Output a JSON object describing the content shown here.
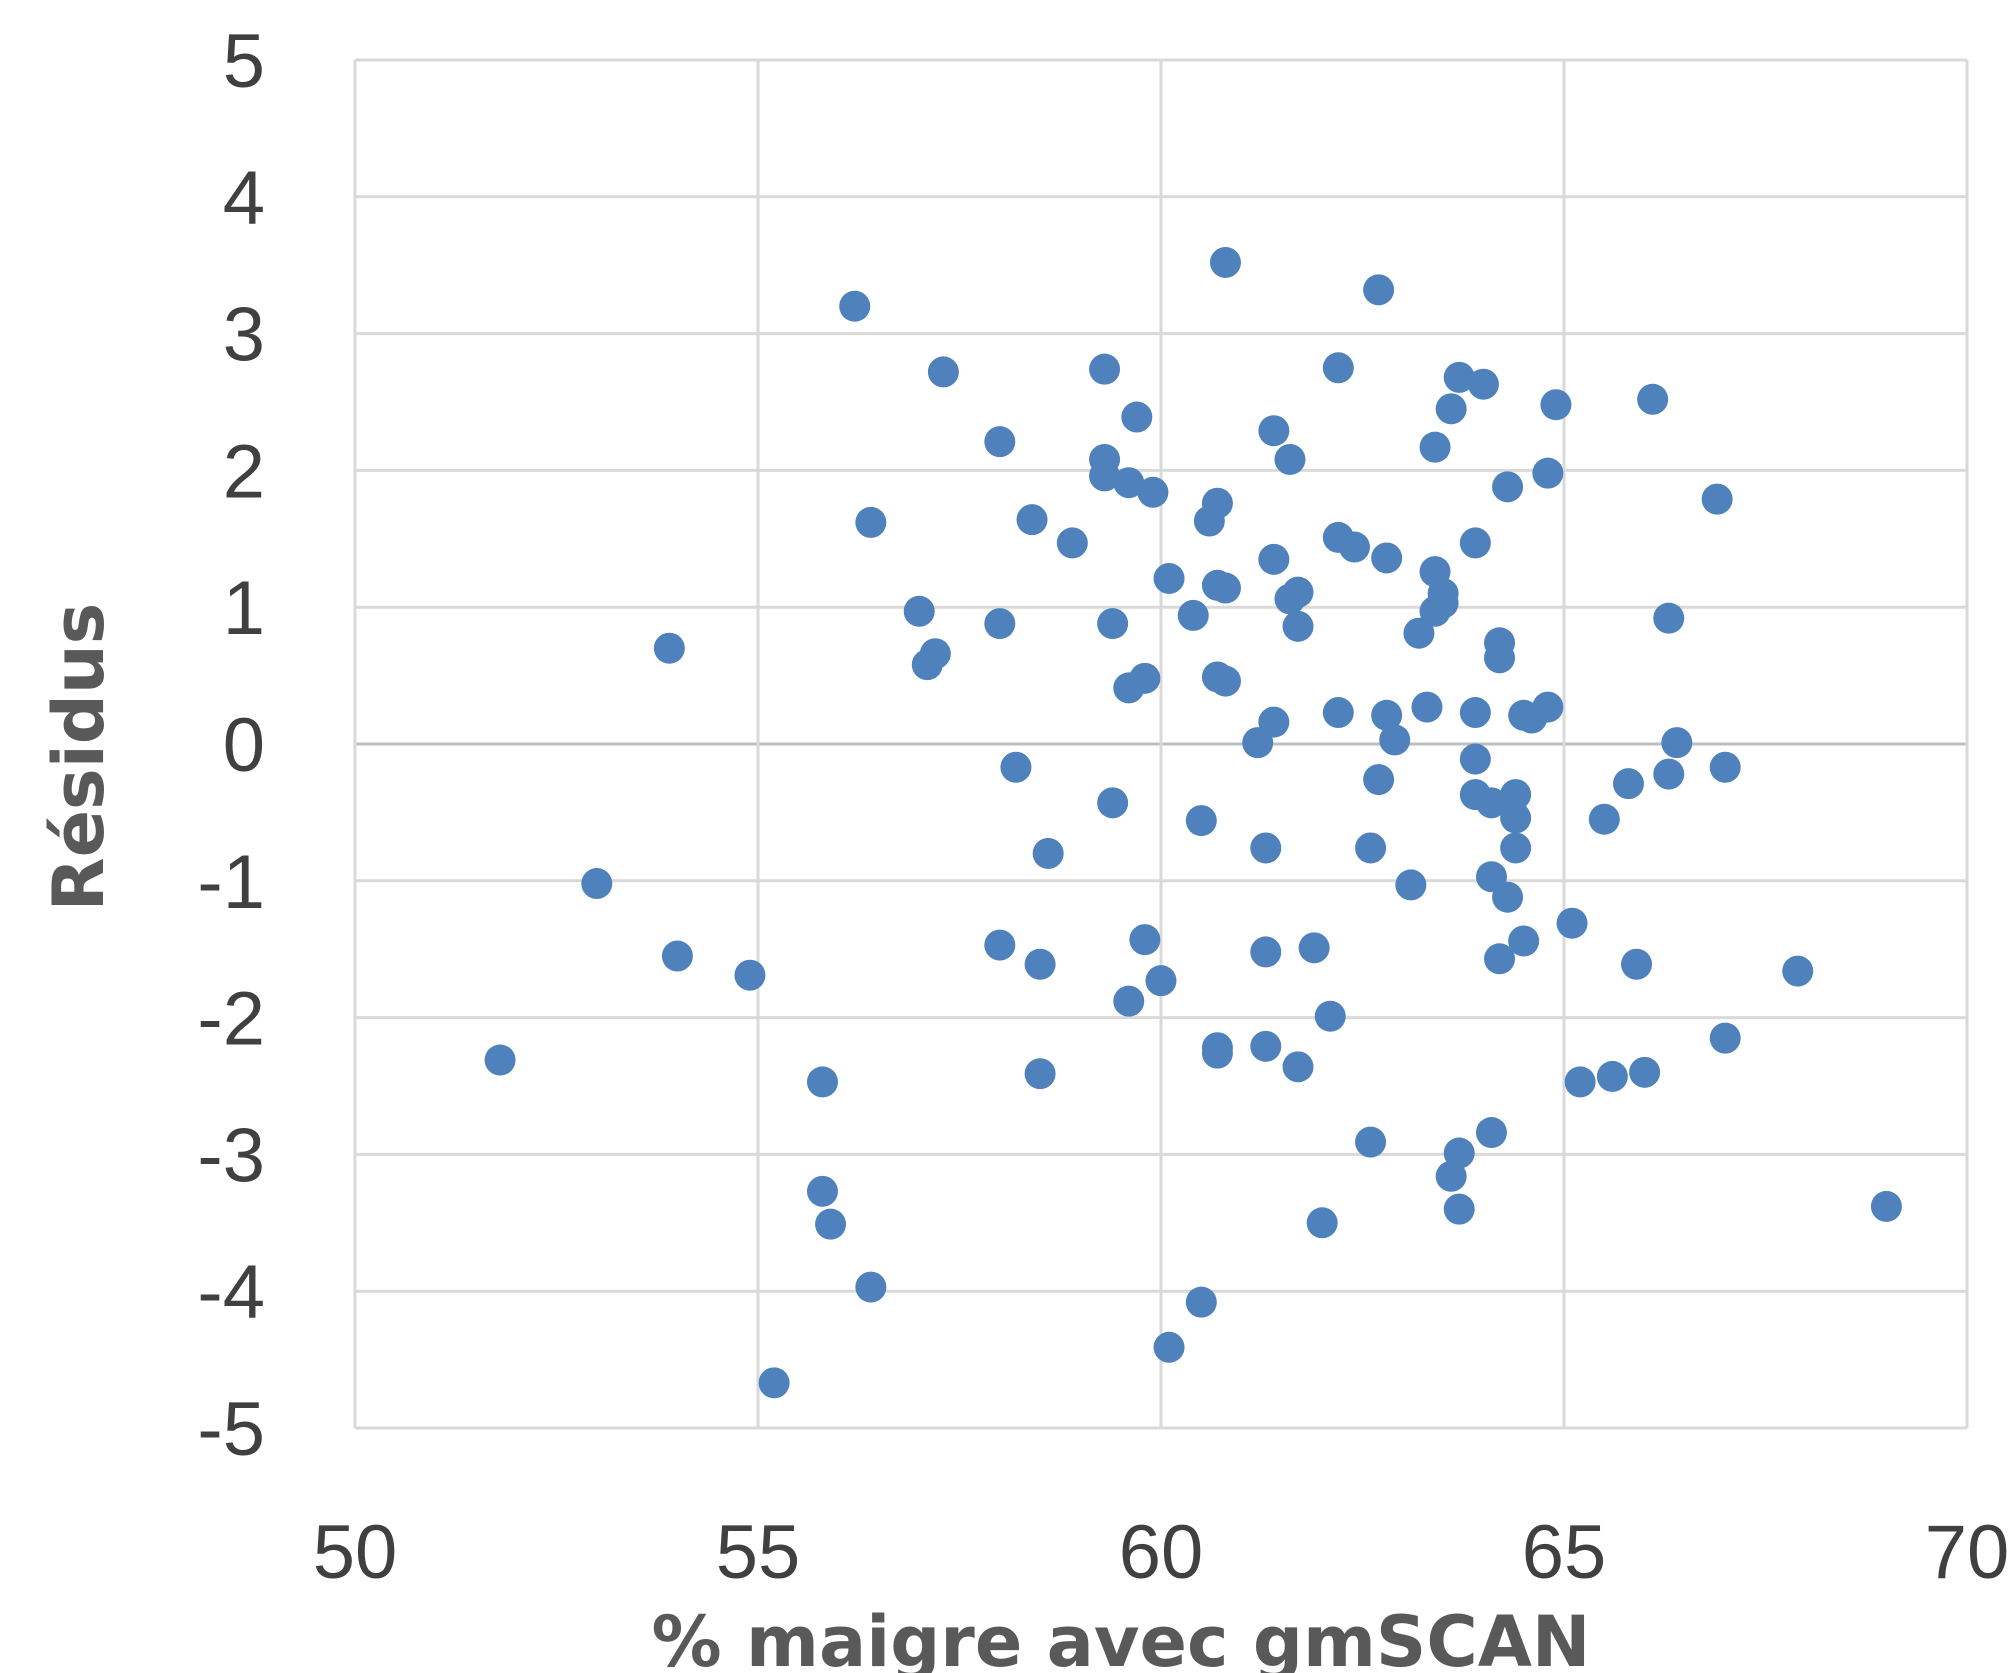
{
  "chart_data": {
    "type": "scatter",
    "title": "",
    "xlabel": "% maigre avec gmSCAN",
    "ylabel": "Résidus",
    "xlim": [
      50,
      70
    ],
    "ylim": [
      -5,
      5
    ],
    "x_ticks": [
      "50",
      "55",
      "60",
      "65",
      "70"
    ],
    "y_ticks": [
      "5",
      "4",
      "3",
      "2",
      "1",
      "0",
      "-1",
      "-2",
      "-3",
      "-4",
      "-5"
    ],
    "grid": true,
    "legend": "none",
    "marker_color": "#4f81bd",
    "series": [
      {
        "points": [
          {
            "x": 51.8,
            "y": -2.31
          },
          {
            "x": 53.0,
            "y": -1.02
          },
          {
            "x": 53.9,
            "y": 0.7
          },
          {
            "x": 54.0,
            "y": -1.55
          },
          {
            "x": 54.9,
            "y": -1.69
          },
          {
            "x": 55.2,
            "y": -4.67
          },
          {
            "x": 55.8,
            "y": -2.47
          },
          {
            "x": 55.8,
            "y": -3.27
          },
          {
            "x": 55.9,
            "y": -3.51
          },
          {
            "x": 56.2,
            "y": 3.2
          },
          {
            "x": 56.4,
            "y": 1.62
          },
          {
            "x": 56.4,
            "y": -3.97
          },
          {
            "x": 57.0,
            "y": 0.97
          },
          {
            "x": 57.1,
            "y": 0.58
          },
          {
            "x": 57.2,
            "y": 0.66
          },
          {
            "x": 57.3,
            "y": 2.72
          },
          {
            "x": 58.0,
            "y": 2.21
          },
          {
            "x": 58.0,
            "y": 0.88
          },
          {
            "x": 58.0,
            "y": -1.47
          },
          {
            "x": 58.2,
            "y": -0.17
          },
          {
            "x": 58.4,
            "y": 1.64
          },
          {
            "x": 58.5,
            "y": -1.61
          },
          {
            "x": 58.5,
            "y": -2.41
          },
          {
            "x": 58.6,
            "y": -0.8
          },
          {
            "x": 58.9,
            "y": 1.47
          },
          {
            "x": 59.3,
            "y": 2.74
          },
          {
            "x": 59.3,
            "y": 2.08
          },
          {
            "x": 59.3,
            "y": 1.96
          },
          {
            "x": 59.4,
            "y": 0.88
          },
          {
            "x": 59.4,
            "y": -0.43
          },
          {
            "x": 59.6,
            "y": 1.91
          },
          {
            "x": 59.6,
            "y": 0.41
          },
          {
            "x": 59.6,
            "y": -1.88
          },
          {
            "x": 59.7,
            "y": 2.39
          },
          {
            "x": 59.8,
            "y": 0.48
          },
          {
            "x": 59.8,
            "y": -1.43
          },
          {
            "x": 59.9,
            "y": 1.84
          },
          {
            "x": 60.0,
            "y": -1.73
          },
          {
            "x": 60.1,
            "y": 1.21
          },
          {
            "x": 60.1,
            "y": -4.41
          },
          {
            "x": 60.4,
            "y": 0.94
          },
          {
            "x": 60.5,
            "y": -0.56
          },
          {
            "x": 60.5,
            "y": -4.08
          },
          {
            "x": 60.6,
            "y": 1.63
          },
          {
            "x": 60.7,
            "y": 1.76
          },
          {
            "x": 60.7,
            "y": 1.16
          },
          {
            "x": 60.7,
            "y": 0.49
          },
          {
            "x": 60.7,
            "y": -2.22
          },
          {
            "x": 60.7,
            "y": -2.26
          },
          {
            "x": 60.8,
            "y": 3.52
          },
          {
            "x": 60.8,
            "y": 1.14
          },
          {
            "x": 60.8,
            "y": 0.46
          },
          {
            "x": 61.2,
            "y": 0.01
          },
          {
            "x": 61.3,
            "y": -0.76
          },
          {
            "x": 61.3,
            "y": -1.52
          },
          {
            "x": 61.3,
            "y": -2.21
          },
          {
            "x": 61.4,
            "y": 2.29
          },
          {
            "x": 61.4,
            "y": 1.35
          },
          {
            "x": 61.4,
            "y": 0.16
          },
          {
            "x": 61.6,
            "y": 2.08
          },
          {
            "x": 61.6,
            "y": 1.06
          },
          {
            "x": 61.7,
            "y": 1.11
          },
          {
            "x": 61.7,
            "y": 0.86
          },
          {
            "x": 61.7,
            "y": -2.36
          },
          {
            "x": 61.9,
            "y": -1.49
          },
          {
            "x": 62.0,
            "y": -3.5
          },
          {
            "x": 62.1,
            "y": -1.99
          },
          {
            "x": 62.2,
            "y": 2.75
          },
          {
            "x": 62.2,
            "y": 1.51
          },
          {
            "x": 62.2,
            "y": 0.23
          },
          {
            "x": 62.4,
            "y": 1.44
          },
          {
            "x": 62.6,
            "y": -0.76
          },
          {
            "x": 62.6,
            "y": -2.91
          },
          {
            "x": 62.7,
            "y": 3.32
          },
          {
            "x": 62.7,
            "y": -0.26
          },
          {
            "x": 62.8,
            "y": 1.36
          },
          {
            "x": 62.8,
            "y": 0.21
          },
          {
            "x": 62.9,
            "y": 0.03
          },
          {
            "x": 63.1,
            "y": -1.03
          },
          {
            "x": 63.2,
            "y": 0.81
          },
          {
            "x": 63.3,
            "y": 0.27
          },
          {
            "x": 63.4,
            "y": 1.26
          },
          {
            "x": 63.4,
            "y": 0.97
          },
          {
            "x": 63.4,
            "y": 2.17
          },
          {
            "x": 63.5,
            "y": 1.1
          },
          {
            "x": 63.5,
            "y": 1.03
          },
          {
            "x": 63.6,
            "y": 2.45
          },
          {
            "x": 63.6,
            "y": -3.16
          },
          {
            "x": 63.7,
            "y": 2.68
          },
          {
            "x": 63.7,
            "y": -2.99
          },
          {
            "x": 63.7,
            "y": -3.4
          },
          {
            "x": 63.9,
            "y": 1.47
          },
          {
            "x": 63.9,
            "y": 0.23
          },
          {
            "x": 63.9,
            "y": -0.11
          },
          {
            "x": 63.9,
            "y": -0.37
          },
          {
            "x": 64.0,
            "y": 2.63
          },
          {
            "x": 64.1,
            "y": -0.97
          },
          {
            "x": 64.1,
            "y": -2.84
          },
          {
            "x": 64.1,
            "y": -0.43
          },
          {
            "x": 64.2,
            "y": 0.74
          },
          {
            "x": 64.2,
            "y": 0.63
          },
          {
            "x": 64.2,
            "y": -1.57
          },
          {
            "x": 64.3,
            "y": 1.88
          },
          {
            "x": 64.3,
            "y": -1.12
          },
          {
            "x": 64.4,
            "y": -0.37
          },
          {
            "x": 64.4,
            "y": -0.54
          },
          {
            "x": 64.4,
            "y": -0.76
          },
          {
            "x": 64.5,
            "y": 0.21
          },
          {
            "x": 64.5,
            "y": -1.44
          },
          {
            "x": 64.6,
            "y": 0.19
          },
          {
            "x": 64.8,
            "y": 1.98
          },
          {
            "x": 64.8,
            "y": 0.27
          },
          {
            "x": 64.9,
            "y": 2.48
          },
          {
            "x": 65.1,
            "y": -1.31
          },
          {
            "x": 65.2,
            "y": -2.47
          },
          {
            "x": 65.5,
            "y": -0.55
          },
          {
            "x": 65.6,
            "y": -2.43
          },
          {
            "x": 65.8,
            "y": -0.29
          },
          {
            "x": 65.9,
            "y": -1.61
          },
          {
            "x": 66.0,
            "y": -2.4
          },
          {
            "x": 66.1,
            "y": 2.52
          },
          {
            "x": 66.3,
            "y": 0.92
          },
          {
            "x": 66.3,
            "y": -0.22
          },
          {
            "x": 66.4,
            "y": 0.01
          },
          {
            "x": 66.9,
            "y": 1.79
          },
          {
            "x": 67.0,
            "y": -0.17
          },
          {
            "x": 67.0,
            "y": -2.15
          },
          {
            "x": 67.9,
            "y": -1.66
          },
          {
            "x": 69.0,
            "y": -3.38
          }
        ]
      }
    ]
  }
}
